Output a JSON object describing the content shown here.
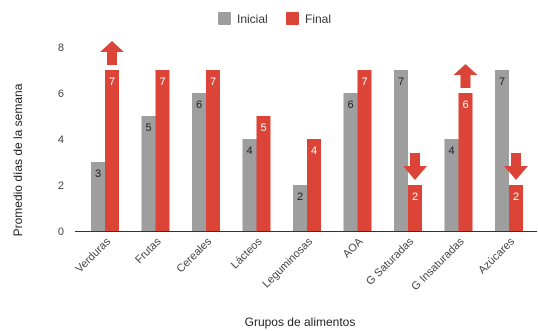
{
  "chart_data": {
    "type": "bar",
    "xlabel": "Grupos de alimentos",
    "ylabel": "Promedio días de la semana",
    "ylim": [
      0,
      8
    ],
    "yticks": [
      0,
      2,
      4,
      6,
      8
    ],
    "grid": false,
    "legend_position": "top",
    "categories": [
      "Verduras",
      "Frutas",
      "Cereales",
      "Lácteos",
      "Leguminosas",
      "AOA",
      "G Saturadas",
      "G Insaturadas",
      "Azúcares"
    ],
    "series": [
      {
        "name": "Inicial",
        "color": "#9e9e9e",
        "label_color": "#222222",
        "values": [
          3,
          5,
          6,
          4,
          2,
          6,
          7,
          4,
          7
        ]
      },
      {
        "name": "Final",
        "color": "#db4437",
        "label_color": "#ffffff",
        "values": [
          7,
          7,
          7,
          5,
          4,
          7,
          2,
          6,
          2
        ]
      }
    ],
    "annotations": [
      {
        "type": "arrow-up",
        "category": "Verduras",
        "color": "#db4437"
      },
      {
        "type": "arrow-down",
        "category": "G Saturadas",
        "color": "#db4437"
      },
      {
        "type": "arrow-up",
        "category": "G Insaturadas",
        "color": "#db4437"
      },
      {
        "type": "arrow-down",
        "category": "Azúcares",
        "color": "#db4437"
      }
    ]
  }
}
